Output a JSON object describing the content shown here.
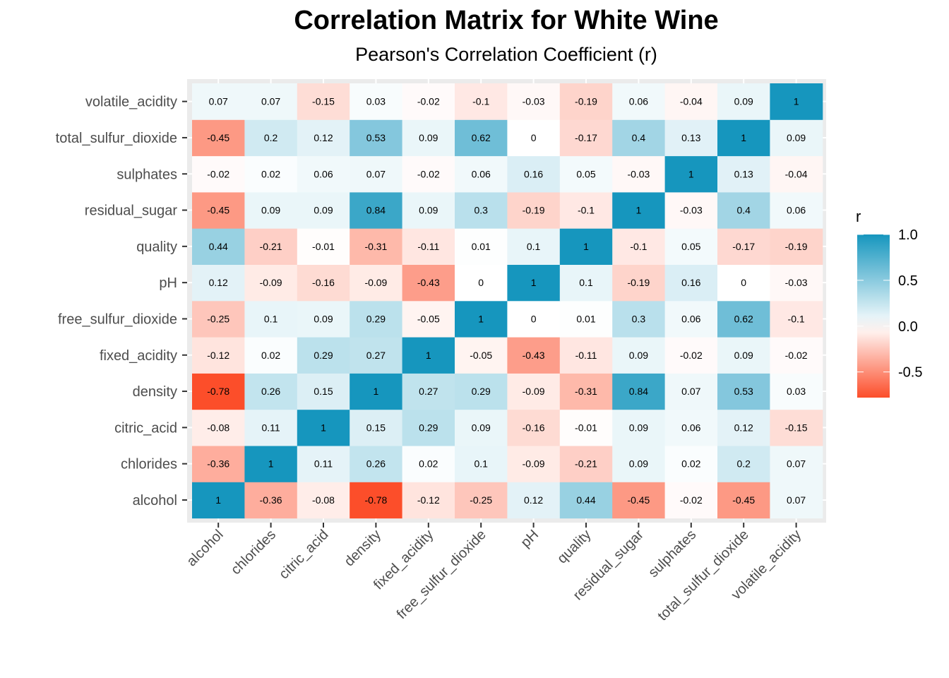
{
  "chart_data": {
    "type": "heatmap",
    "title": "Correlation Matrix for White Wine",
    "subtitle": "Pearson's Correlation Coefficient (r)",
    "xlabel": "",
    "ylabel": "",
    "x_categories": [
      "alcohol",
      "chlorides",
      "citric_acid",
      "density",
      "fixed_acidity",
      "free_sulfur_dioxide",
      "pH",
      "quality",
      "residual_sugar",
      "sulphates",
      "total_sulfur_dioxide",
      "volatile_acidity"
    ],
    "y_categories_bottom_to_top": [
      "alcohol",
      "chlorides",
      "citric_acid",
      "density",
      "fixed_acidity",
      "free_sulfur_dioxide",
      "pH",
      "quality",
      "residual_sugar",
      "sulphates",
      "total_sulfur_dioxide",
      "volatile_acidity"
    ],
    "values": [
      [
        1,
        -0.36,
        -0.08,
        -0.78,
        -0.12,
        -0.25,
        0.12,
        0.44,
        -0.45,
        -0.02,
        -0.45,
        0.07
      ],
      [
        -0.36,
        1,
        0.11,
        0.26,
        0.02,
        0.1,
        -0.09,
        -0.21,
        0.09,
        0.02,
        0.2,
        0.07
      ],
      [
        -0.08,
        0.11,
        1,
        0.15,
        0.29,
        0.09,
        -0.16,
        -0.01,
        0.09,
        0.06,
        0.12,
        -0.15
      ],
      [
        -0.78,
        0.26,
        0.15,
        1,
        0.27,
        0.29,
        -0.09,
        -0.31,
        0.84,
        0.07,
        0.53,
        0.03
      ],
      [
        -0.12,
        0.02,
        0.29,
        0.27,
        1,
        -0.05,
        -0.43,
        -0.11,
        0.09,
        -0.02,
        0.09,
        -0.02
      ],
      [
        -0.25,
        0.1,
        0.09,
        0.29,
        -0.05,
        1,
        0,
        0.01,
        0.3,
        0.06,
        0.62,
        -0.1
      ],
      [
        0.12,
        -0.09,
        -0.16,
        -0.09,
        -0.43,
        0,
        1,
        0.1,
        -0.19,
        0.16,
        0,
        -0.03
      ],
      [
        0.44,
        -0.21,
        -0.01,
        -0.31,
        -0.11,
        0.01,
        0.1,
        1,
        -0.1,
        0.05,
        -0.17,
        -0.19
      ],
      [
        -0.45,
        0.09,
        0.09,
        0.84,
        0.09,
        0.3,
        -0.19,
        -0.1,
        1,
        -0.03,
        0.4,
        0.06
      ],
      [
        -0.02,
        0.02,
        0.06,
        0.07,
        -0.02,
        0.06,
        0.16,
        0.05,
        -0.03,
        1,
        0.13,
        -0.04
      ],
      [
        -0.45,
        0.2,
        0.12,
        0.53,
        0.09,
        0.62,
        0,
        -0.17,
        0.4,
        0.13,
        1,
        0.09
      ],
      [
        0.07,
        0.07,
        -0.15,
        0.03,
        -0.02,
        -0.1,
        -0.03,
        -0.19,
        0.06,
        -0.04,
        0.09,
        1
      ]
    ],
    "value_range": [
      -0.78,
      1
    ],
    "colorscale": {
      "low": "#fc4e2a",
      "mid": "#ffffff",
      "high": "#1696be",
      "midpoint": 0
    },
    "legend": {
      "title": "r",
      "ticks": [
        1.0,
        0.5,
        0.0,
        -0.5
      ],
      "tick_labels": [
        "1.0",
        "0.5",
        "0.0",
        "-0.5"
      ],
      "placement": "right"
    },
    "grid": true,
    "panel_background": "#ebebeb",
    "x_tick_rotation_deg": 45
  }
}
